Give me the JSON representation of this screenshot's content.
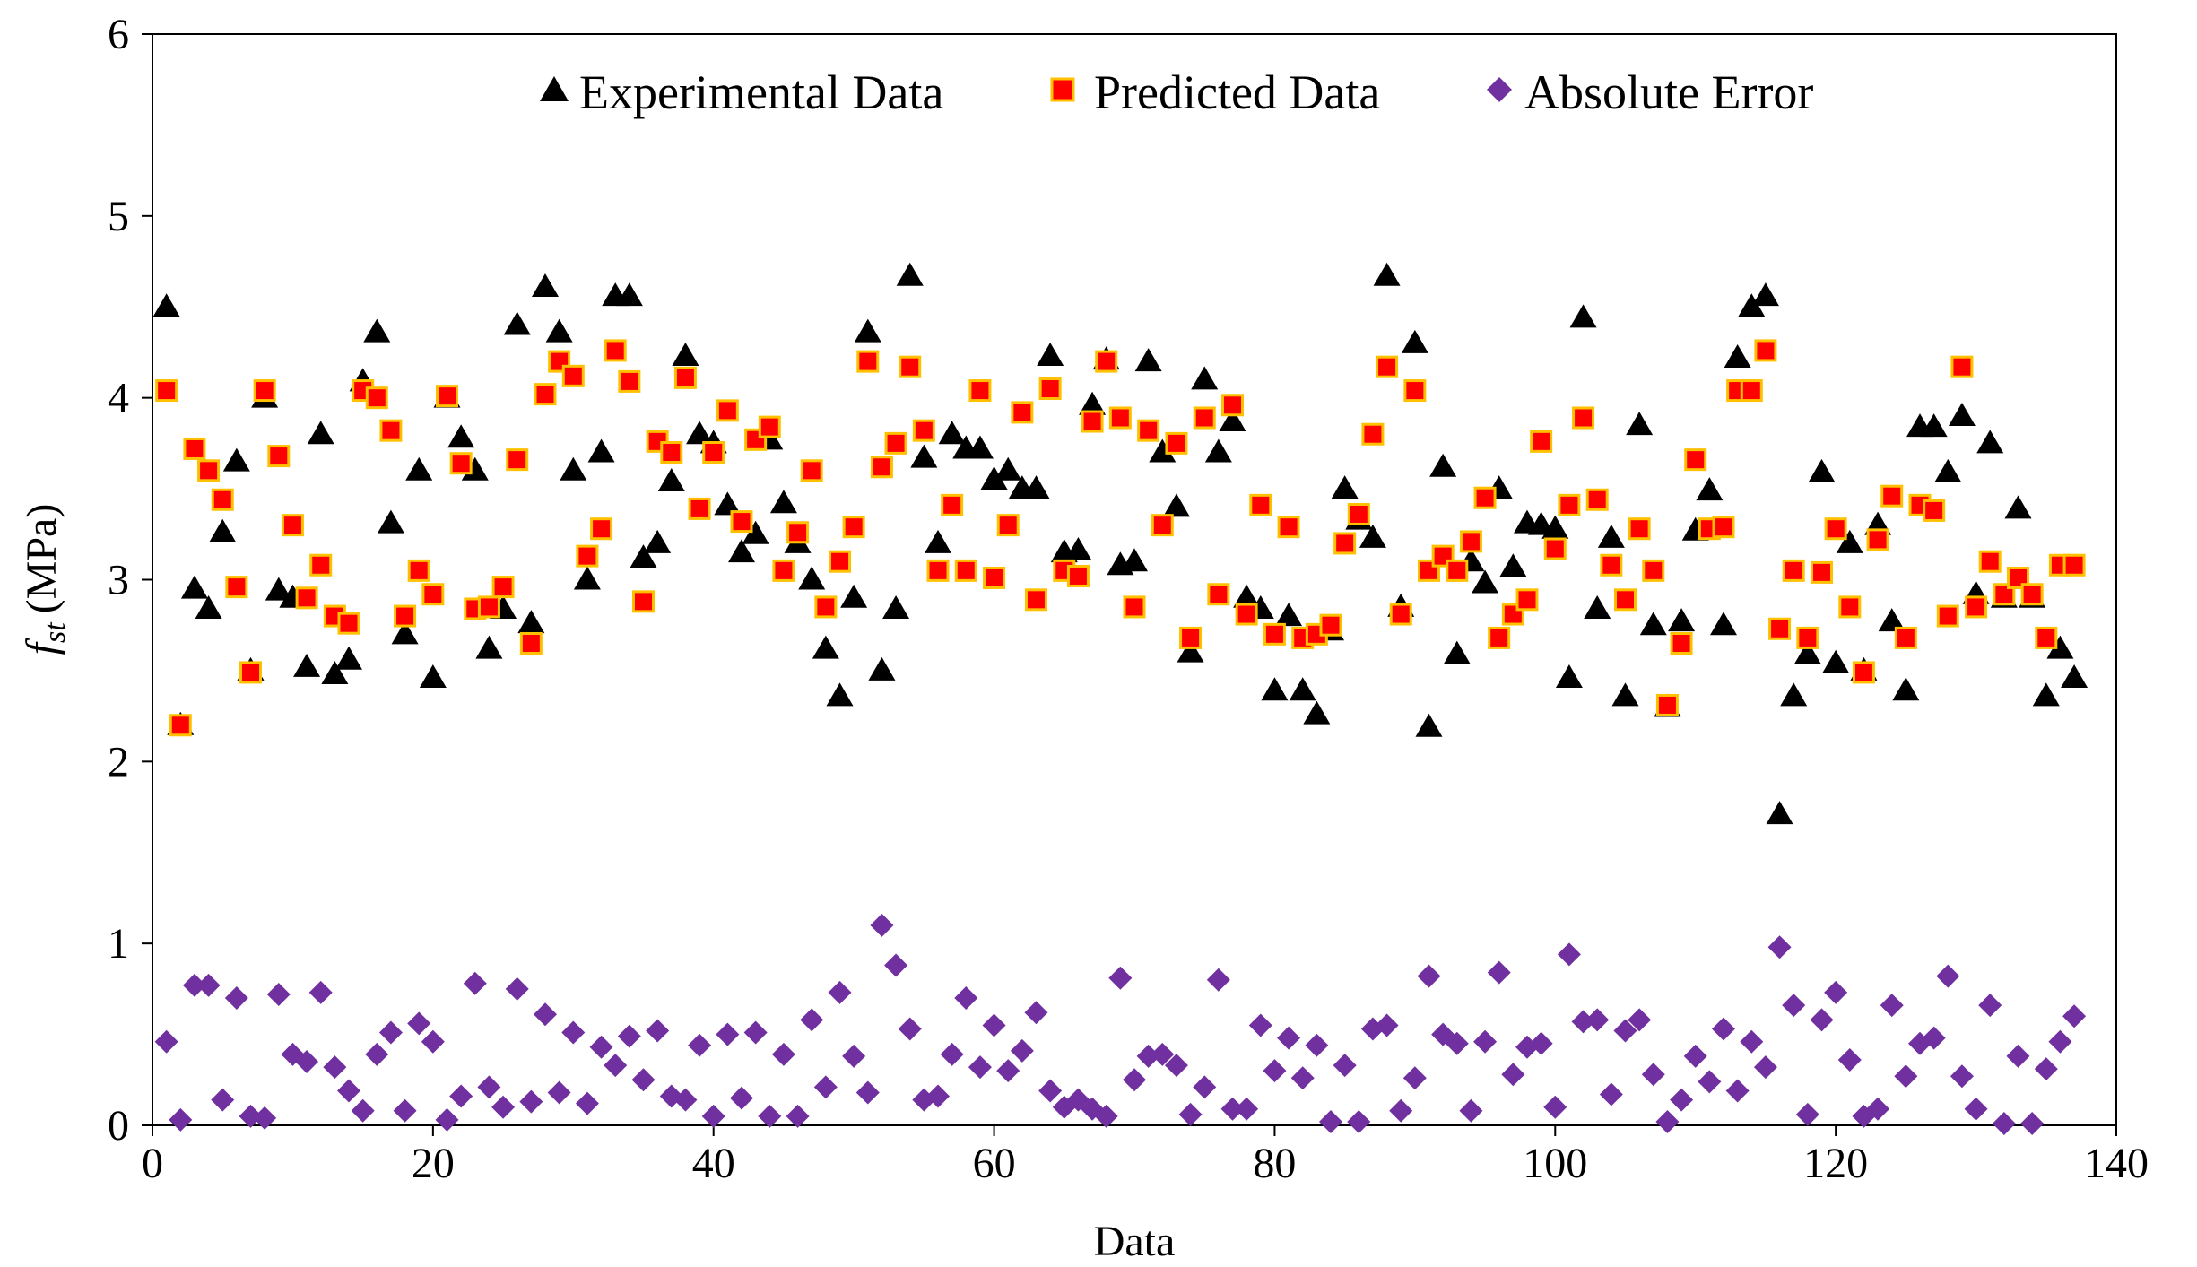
{
  "chart_data": {
    "type": "scatter",
    "xlabel": "Data",
    "ylabel": "(MPa)",
    "ylabel_symbol": "f",
    "ylabel_subscript": "st",
    "xlim": [
      0,
      140
    ],
    "ylim": [
      0,
      6
    ],
    "x_ticks": [
      0,
      20,
      40,
      60,
      80,
      100,
      120,
      140
    ],
    "y_ticks": [
      0,
      1,
      2,
      3,
      4,
      5,
      6
    ],
    "grid": false,
    "legend_position": "top",
    "series": [
      {
        "name": "Experimental Data",
        "marker": "triangle",
        "color": "#000000",
        "values": [
          4.5,
          2.2,
          2.95,
          2.84,
          3.26,
          3.65,
          2.5,
          4.0,
          2.94,
          2.9,
          2.52,
          3.8,
          2.48,
          2.56,
          4.09,
          4.36,
          3.31,
          2.7,
          3.6,
          2.46,
          4.0,
          3.78,
          3.6,
          2.62,
          2.84,
          4.4,
          2.76,
          4.61,
          4.36,
          3.6,
          3.0,
          3.7,
          4.56,
          4.56,
          3.12,
          3.2,
          3.54,
          4.23,
          3.8,
          3.75,
          3.41,
          3.15,
          3.25,
          3.77,
          3.42,
          3.2,
          3.0,
          2.62,
          2.36,
          2.9,
          4.36,
          2.5,
          2.84,
          4.67,
          3.67,
          3.2,
          3.8,
          3.72,
          3.72,
          3.55,
          3.6,
          3.5,
          3.5,
          4.23,
          3.15,
          3.16,
          3.96,
          4.21,
          3.08,
          3.1,
          4.2,
          3.7,
          3.4,
          2.6,
          4.1,
          3.7,
          3.87,
          2.9,
          2.84,
          2.39,
          2.8,
          2.39,
          2.26,
          2.72,
          3.5,
          3.33,
          3.23,
          4.67,
          2.85,
          4.3,
          2.19,
          3.62,
          2.59,
          3.1,
          2.98,
          3.5,
          3.07,
          3.31,
          3.3,
          3.28,
          2.46,
          4.44,
          2.84,
          3.23,
          2.36,
          3.85,
          2.75,
          2.3,
          2.77,
          3.27,
          3.49,
          2.75,
          4.22,
          4.5,
          4.56,
          1.71,
          2.36,
          2.59,
          3.59,
          2.54,
          3.2,
          2.5,
          3.3,
          2.77,
          2.39,
          3.84,
          3.84,
          3.59,
          3.9,
          2.92,
          3.75,
          2.9,
          3.39,
          2.9,
          2.36,
          2.62,
          2.46
        ]
      },
      {
        "name": "Predicted Data",
        "marker": "square",
        "color": "#ff0000",
        "values": [
          4.04,
          2.2,
          3.72,
          3.6,
          3.44,
          2.96,
          2.49,
          4.04,
          3.68,
          3.3,
          2.9,
          3.08,
          2.8,
          2.76,
          4.04,
          4.0,
          3.82,
          2.8,
          3.05,
          2.92,
          4.01,
          3.64,
          2.84,
          2.85,
          2.96,
          3.66,
          2.65,
          4.02,
          4.2,
          4.12,
          3.13,
          3.28,
          4.26,
          4.09,
          2.88,
          3.76,
          3.7,
          4.11,
          3.39,
          3.7,
          3.93,
          3.32,
          3.77,
          3.84,
          3.05,
          3.26,
          3.6,
          2.85,
          3.1,
          3.29,
          4.2,
          3.62,
          3.75,
          4.17,
          3.82,
          3.05,
          3.41,
          3.05,
          4.04,
          3.01,
          3.3,
          3.92,
          2.89,
          4.05,
          3.05,
          3.02,
          3.87,
          4.2,
          3.89,
          2.85,
          3.82,
          3.3,
          3.75,
          2.68,
          3.89,
          2.92,
          3.96,
          2.81,
          3.41,
          2.7,
          3.29,
          2.68,
          2.7,
          2.75,
          3.2,
          3.36,
          3.8,
          4.17,
          2.81,
          4.04,
          3.05,
          3.13,
          3.05,
          3.21,
          3.45,
          2.68,
          2.81,
          2.89,
          3.76,
          3.17,
          3.41,
          3.89,
          3.44,
          3.08,
          2.89,
          3.28,
          3.05,
          2.31,
          2.65,
          3.66,
          3.28,
          3.29,
          4.04,
          4.04,
          4.26,
          2.73,
          3.05,
          2.68,
          3.04,
          3.28,
          2.85,
          2.49,
          3.22,
          3.46,
          2.68,
          3.41,
          3.38,
          2.8,
          4.17,
          2.85,
          3.1,
          2.92,
          3.01,
          2.92,
          2.68,
          3.08,
          3.08
        ]
      },
      {
        "name": "Absolute Error",
        "marker": "diamond",
        "color": "#7030a0",
        "values": [
          0.46,
          0.03,
          0.77,
          0.77,
          0.14,
          0.7,
          0.05,
          0.04,
          0.72,
          0.39,
          0.35,
          0.73,
          0.32,
          0.19,
          0.08,
          0.39,
          0.51,
          0.08,
          0.56,
          0.46,
          0.03,
          0.16,
          0.78,
          0.21,
          0.1,
          0.75,
          0.13,
          0.61,
          0.18,
          0.51,
          0.12,
          0.43,
          0.33,
          0.49,
          0.25,
          0.52,
          0.16,
          0.14,
          0.44,
          0.05,
          0.5,
          0.15,
          0.51,
          0.05,
          0.39,
          0.05,
          0.58,
          0.21,
          0.73,
          0.38,
          0.18,
          1.1,
          0.88,
          0.53,
          0.14,
          0.16,
          0.39,
          0.7,
          0.32,
          0.55,
          0.3,
          0.41,
          0.62,
          0.19,
          0.1,
          0.14,
          0.09,
          0.05,
          0.81,
          0.25,
          0.38,
          0.39,
          0.33,
          0.06,
          0.21,
          0.8,
          0.09,
          0.09,
          0.55,
          0.3,
          0.48,
          0.26,
          0.44,
          0.02,
          0.33,
          0.02,
          0.53,
          0.55,
          0.08,
          0.26,
          0.82,
          0.5,
          0.45,
          0.08,
          0.46,
          0.84,
          0.28,
          0.43,
          0.45,
          0.1,
          0.94,
          0.57,
          0.58,
          0.17,
          0.52,
          0.58,
          0.28,
          0.02,
          0.14,
          0.38,
          0.24,
          0.53,
          0.19,
          0.46,
          0.32,
          0.98,
          0.66,
          0.06,
          0.58,
          0.73,
          0.36,
          0.05,
          0.09,
          0.66,
          0.27,
          0.45,
          0.48,
          0.82,
          0.27,
          0.09,
          0.66,
          0.01,
          0.38,
          0.01,
          0.31,
          0.46,
          0.6
        ]
      }
    ]
  }
}
